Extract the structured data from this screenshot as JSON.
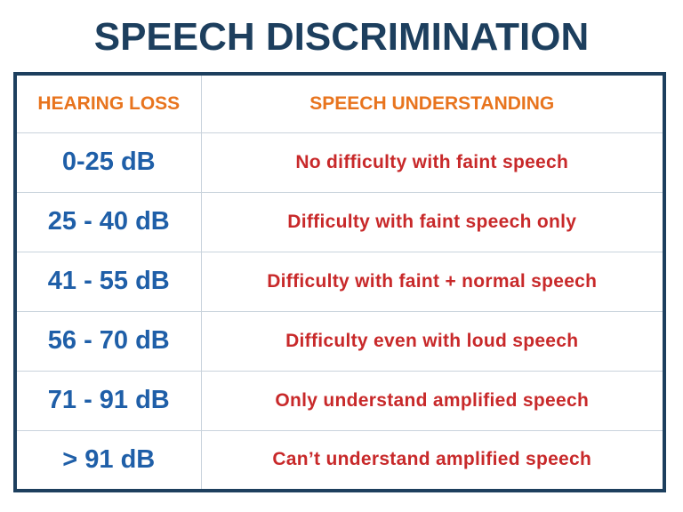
{
  "title": "SPEECH DISCRIMINATION",
  "table": {
    "headers": {
      "hearing_loss": "HEARING LOSS",
      "speech_understanding": "SPEECH UNDERSTANDING"
    },
    "rows": [
      {
        "loss": "0-25 dB",
        "understanding": "No difficulty with faint speech"
      },
      {
        "loss": "25 - 40 dB",
        "understanding": "Difficulty with faint speech only"
      },
      {
        "loss": "41 - 55 dB",
        "understanding": "Difficulty with faint + normal speech"
      },
      {
        "loss": "56 - 70 dB",
        "understanding": "Difficulty even with loud speech"
      },
      {
        "loss": "71 - 91 dB",
        "understanding": "Only understand amplified speech"
      },
      {
        "loss": "> 91 dB",
        "understanding": "Can’t understand amplified speech"
      }
    ]
  },
  "colors": {
    "title": "#1d3f5e",
    "frame": "#1d3f5e",
    "header_text": "#e8741e",
    "loss_text": "#1f5fa8",
    "understanding_text": "#c8292a"
  }
}
